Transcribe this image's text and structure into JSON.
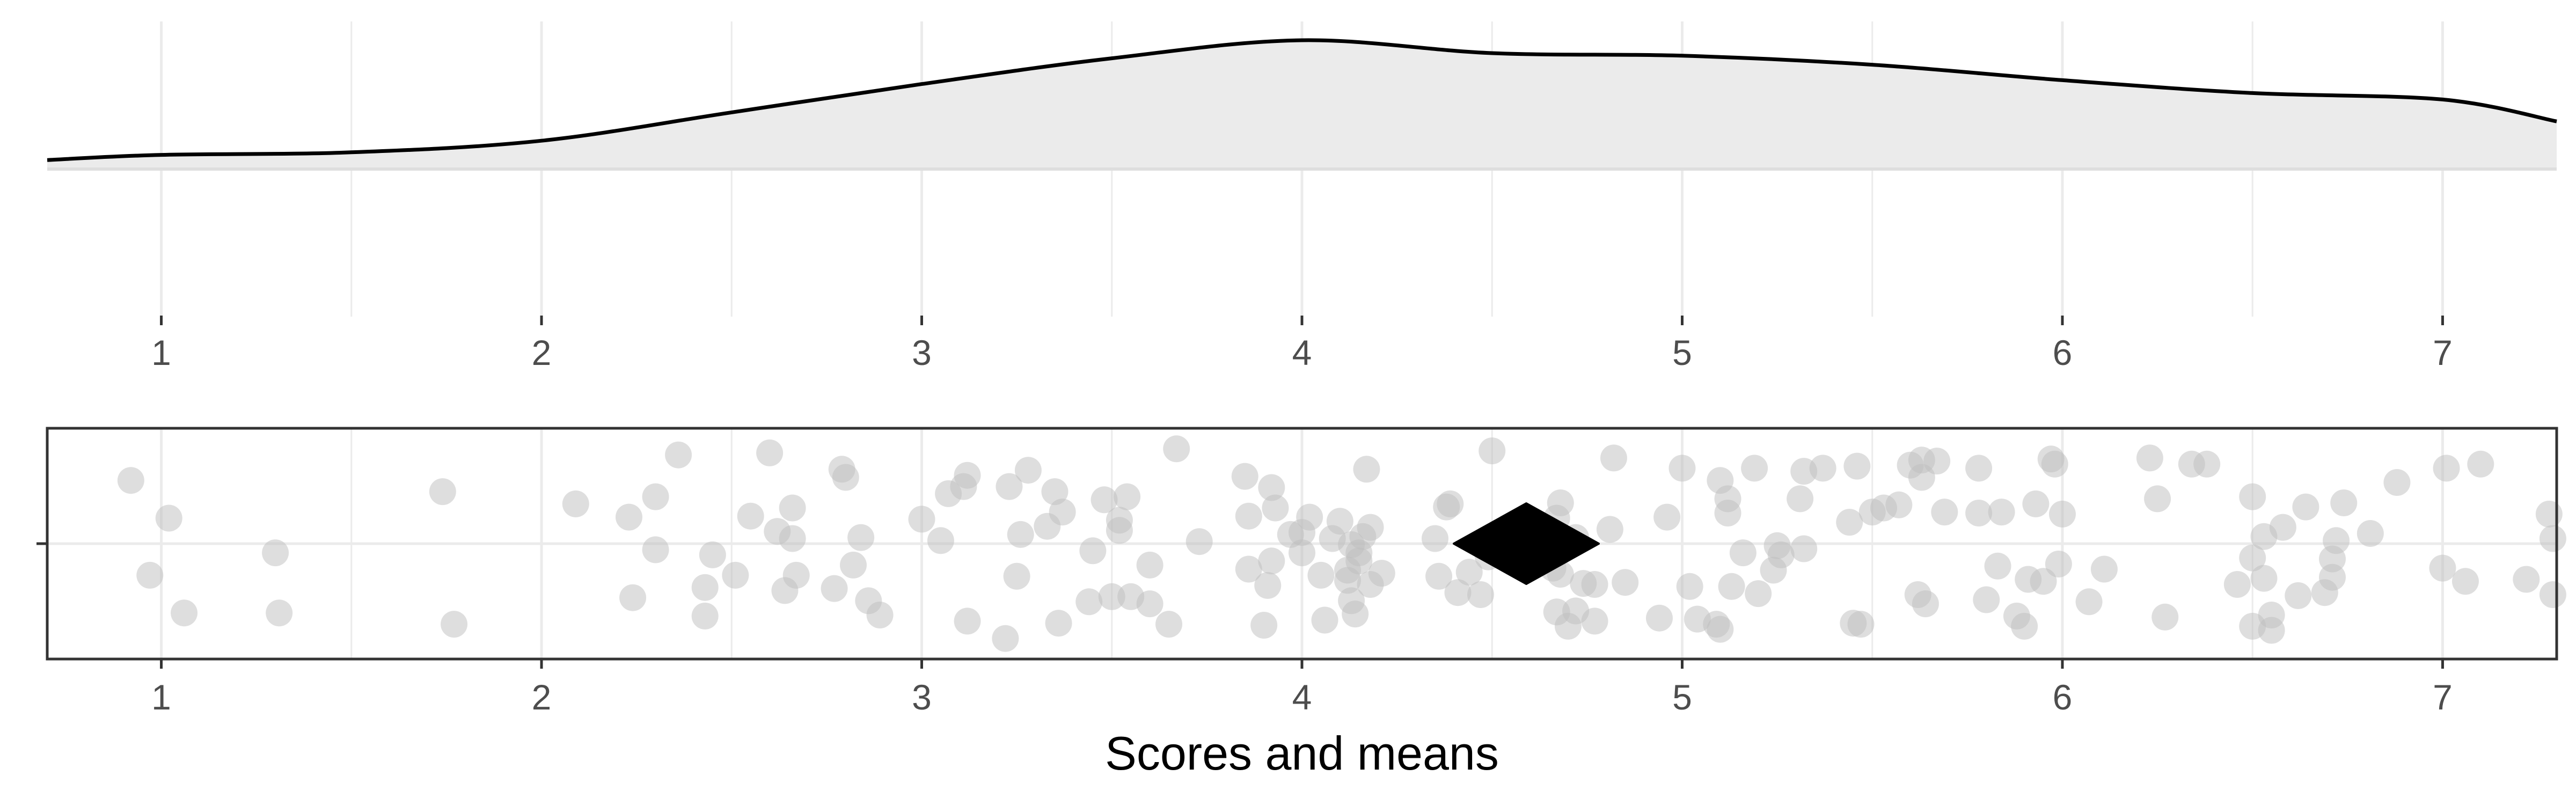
{
  "chart_data": [
    {
      "type": "area",
      "panel": "density",
      "x_range": [
        0.7,
        7.3
      ],
      "grid": true,
      "ticks": [
        "1",
        "2",
        "3",
        "4",
        "5",
        "6",
        "7"
      ],
      "tick_values": [
        1,
        2,
        3,
        4,
        5,
        6,
        7
      ],
      "density": {
        "x": [
          0.7,
          1.0,
          1.5,
          2.0,
          2.5,
          3.0,
          3.5,
          4.0,
          4.5,
          5.0,
          5.5,
          6.0,
          6.5,
          7.0,
          7.3
        ],
        "y": [
          0.07,
          0.11,
          0.13,
          0.22,
          0.44,
          0.66,
          0.86,
          1.0,
          0.9,
          0.88,
          0.81,
          0.69,
          0.59,
          0.54,
          0.37
        ]
      },
      "colors": {
        "fill": "#ebebeb",
        "line": "#000000"
      }
    },
    {
      "type": "scatter",
      "panel": "jitter",
      "x_range": [
        0.7,
        7.3
      ],
      "xlabel": "Scores and means",
      "ticks": [
        "1",
        "2",
        "3",
        "4",
        "5",
        "6",
        "7"
      ],
      "tick_values": [
        1,
        2,
        3,
        4,
        5,
        6,
        7
      ],
      "grid": true,
      "mean": 4.59,
      "points": [
        {
          "x": 0.92,
          "j": 0.62
        },
        {
          "x": 0.97,
          "j": -0.31
        },
        {
          "x": 1.02,
          "j": 0.25
        },
        {
          "x": 1.06,
          "j": -0.68
        },
        {
          "x": 1.3,
          "j": -0.09
        },
        {
          "x": 1.31,
          "j": -0.68
        },
        {
          "x": 1.74,
          "j": 0.51
        },
        {
          "x": 1.77,
          "j": -0.79
        },
        {
          "x": 2.09,
          "j": 0.39
        },
        {
          "x": 2.23,
          "j": 0.26
        },
        {
          "x": 2.24,
          "j": -0.53
        },
        {
          "x": 2.3,
          "j": 0.46
        },
        {
          "x": 2.3,
          "j": -0.06
        },
        {
          "x": 2.36,
          "j": 0.87
        },
        {
          "x": 2.43,
          "j": -0.43
        },
        {
          "x": 2.43,
          "j": -0.71
        },
        {
          "x": 2.45,
          "j": -0.11
        },
        {
          "x": 2.51,
          "j": -0.31
        },
        {
          "x": 2.55,
          "j": 0.27
        },
        {
          "x": 2.6,
          "j": 0.89
        },
        {
          "x": 2.62,
          "j": 0.12
        },
        {
          "x": 2.64,
          "j": -0.46
        },
        {
          "x": 2.66,
          "j": 0.35
        },
        {
          "x": 2.66,
          "j": 0.05
        },
        {
          "x": 2.67,
          "j": -0.31
        },
        {
          "x": 2.77,
          "j": -0.44
        },
        {
          "x": 2.79,
          "j": 0.73
        },
        {
          "x": 2.8,
          "j": 0.65
        },
        {
          "x": 2.82,
          "j": -0.21
        },
        {
          "x": 2.84,
          "j": 0.06
        },
        {
          "x": 2.86,
          "j": -0.56
        },
        {
          "x": 2.89,
          "j": -0.7
        },
        {
          "x": 3.0,
          "j": 0.24
        },
        {
          "x": 3.05,
          "j": 0.03
        },
        {
          "x": 3.07,
          "j": 0.49
        },
        {
          "x": 3.11,
          "j": 0.56
        },
        {
          "x": 3.12,
          "j": 0.67
        },
        {
          "x": 3.12,
          "j": -0.76
        },
        {
          "x": 3.22,
          "j": -0.93
        },
        {
          "x": 3.23,
          "j": 0.56
        },
        {
          "x": 3.25,
          "j": -0.32
        },
        {
          "x": 3.26,
          "j": 0.09
        },
        {
          "x": 3.28,
          "j": 0.72
        },
        {
          "x": 3.33,
          "j": 0.17
        },
        {
          "x": 3.35,
          "j": 0.51
        },
        {
          "x": 3.36,
          "j": -0.78
        },
        {
          "x": 3.37,
          "j": 0.31
        },
        {
          "x": 3.44,
          "j": -0.57
        },
        {
          "x": 3.45,
          "j": -0.07
        },
        {
          "x": 3.48,
          "j": 0.43
        },
        {
          "x": 3.5,
          "j": -0.52
        },
        {
          "x": 3.52,
          "j": 0.23
        },
        {
          "x": 3.52,
          "j": 0.13
        },
        {
          "x": 3.54,
          "j": 0.46
        },
        {
          "x": 3.55,
          "j": -0.52
        },
        {
          "x": 3.6,
          "j": -0.21
        },
        {
          "x": 3.6,
          "j": -0.59
        },
        {
          "x": 3.65,
          "j": -0.79
        },
        {
          "x": 3.67,
          "j": 0.93
        },
        {
          "x": 3.73,
          "j": 0.02
        },
        {
          "x": 3.85,
          "j": 0.66
        },
        {
          "x": 3.86,
          "j": 0.27
        },
        {
          "x": 3.86,
          "j": -0.25
        },
        {
          "x": 3.9,
          "j": -0.8
        },
        {
          "x": 3.91,
          "j": -0.41
        },
        {
          "x": 3.92,
          "j": -0.17
        },
        {
          "x": 3.92,
          "j": 0.55
        },
        {
          "x": 3.93,
          "j": 0.35
        },
        {
          "x": 3.97,
          "j": 0.09
        },
        {
          "x": 4.0,
          "j": 0.11
        },
        {
          "x": 4.0,
          "j": -0.09
        },
        {
          "x": 4.02,
          "j": 0.26
        },
        {
          "x": 4.05,
          "j": -0.31
        },
        {
          "x": 4.06,
          "j": -0.75
        },
        {
          "x": 4.08,
          "j": 0.05
        },
        {
          "x": 4.1,
          "j": 0.22
        },
        {
          "x": 4.12,
          "j": -0.36
        },
        {
          "x": 4.12,
          "j": -0.26
        },
        {
          "x": 4.13,
          "j": -0.56
        },
        {
          "x": 4.13,
          "j": -0.01
        },
        {
          "x": 4.14,
          "j": -0.69
        },
        {
          "x": 4.15,
          "j": -0.17
        },
        {
          "x": 4.15,
          "j": -0.09
        },
        {
          "x": 4.16,
          "j": 0.07
        },
        {
          "x": 4.17,
          "j": 0.73
        },
        {
          "x": 4.18,
          "j": 0.16
        },
        {
          "x": 4.18,
          "j": -0.4
        },
        {
          "x": 4.21,
          "j": -0.29
        },
        {
          "x": 4.35,
          "j": 0.05
        },
        {
          "x": 4.36,
          "j": -0.32
        },
        {
          "x": 4.38,
          "j": 0.36
        },
        {
          "x": 4.39,
          "j": 0.39
        },
        {
          "x": 4.41,
          "j": -0.48
        },
        {
          "x": 4.44,
          "j": -0.28
        },
        {
          "x": 4.47,
          "j": -0.5
        },
        {
          "x": 4.49,
          "j": -0.13
        },
        {
          "x": 4.5,
          "j": 0.91
        },
        {
          "x": 4.66,
          "j": -0.24
        },
        {
          "x": 4.67,
          "j": -0.67
        },
        {
          "x": 4.67,
          "j": 0.25
        },
        {
          "x": 4.68,
          "j": 0.4
        },
        {
          "x": 4.68,
          "j": -0.3
        },
        {
          "x": 4.7,
          "j": -0.81
        },
        {
          "x": 4.72,
          "j": -0.66
        },
        {
          "x": 4.72,
          "j": 0.06
        },
        {
          "x": 4.74,
          "j": -0.39
        },
        {
          "x": 4.77,
          "j": -0.4
        },
        {
          "x": 4.77,
          "j": -0.76
        },
        {
          "x": 4.81,
          "j": 0.14
        },
        {
          "x": 4.82,
          "j": 0.84
        },
        {
          "x": 4.85,
          "j": -0.38
        },
        {
          "x": 4.94,
          "j": -0.73
        },
        {
          "x": 4.96,
          "j": 0.26
        },
        {
          "x": 5.0,
          "j": 0.74
        },
        {
          "x": 5.02,
          "j": -0.42
        },
        {
          "x": 5.04,
          "j": -0.74
        },
        {
          "x": 5.09,
          "j": -0.79
        },
        {
          "x": 5.1,
          "j": -0.84
        },
        {
          "x": 5.1,
          "j": 0.62
        },
        {
          "x": 5.12,
          "j": 0.3
        },
        {
          "x": 5.12,
          "j": 0.44
        },
        {
          "x": 5.13,
          "j": -0.42
        },
        {
          "x": 5.16,
          "j": -0.09
        },
        {
          "x": 5.19,
          "j": 0.74
        },
        {
          "x": 5.2,
          "j": -0.49
        },
        {
          "x": 5.24,
          "j": -0.26
        },
        {
          "x": 5.25,
          "j": -0.02
        },
        {
          "x": 5.26,
          "j": -0.11
        },
        {
          "x": 5.31,
          "j": 0.44
        },
        {
          "x": 5.32,
          "j": -0.05
        },
        {
          "x": 5.32,
          "j": 0.71
        },
        {
          "x": 5.37,
          "j": 0.74
        },
        {
          "x": 5.44,
          "j": 0.21
        },
        {
          "x": 5.45,
          "j": -0.78
        },
        {
          "x": 5.46,
          "j": 0.76
        },
        {
          "x": 5.47,
          "j": -0.79
        },
        {
          "x": 5.5,
          "j": 0.31
        },
        {
          "x": 5.53,
          "j": 0.35
        },
        {
          "x": 5.57,
          "j": 0.38
        },
        {
          "x": 5.6,
          "j": 0.77
        },
        {
          "x": 5.62,
          "j": -0.5
        },
        {
          "x": 5.63,
          "j": 0.65
        },
        {
          "x": 5.63,
          "j": 0.82
        },
        {
          "x": 5.64,
          "j": -0.59
        },
        {
          "x": 5.67,
          "j": 0.81
        },
        {
          "x": 5.69,
          "j": 0.31
        },
        {
          "x": 5.78,
          "j": 0.3
        },
        {
          "x": 5.78,
          "j": 0.74
        },
        {
          "x": 5.8,
          "j": -0.55
        },
        {
          "x": 5.83,
          "j": -0.22
        },
        {
          "x": 5.84,
          "j": 0.31
        },
        {
          "x": 5.88,
          "j": -0.71
        },
        {
          "x": 5.9,
          "j": -0.81
        },
        {
          "x": 5.91,
          "j": -0.35
        },
        {
          "x": 5.93,
          "j": 0.39
        },
        {
          "x": 5.95,
          "j": -0.37
        },
        {
          "x": 5.97,
          "j": 0.83
        },
        {
          "x": 5.98,
          "j": 0.78
        },
        {
          "x": 5.99,
          "j": -0.2
        },
        {
          "x": 6.0,
          "j": 0.29
        },
        {
          "x": 6.07,
          "j": -0.57
        },
        {
          "x": 6.11,
          "j": -0.25
        },
        {
          "x": 6.23,
          "j": 0.84
        },
        {
          "x": 6.25,
          "j": 0.44
        },
        {
          "x": 6.27,
          "j": -0.72
        },
        {
          "x": 6.34,
          "j": 0.78
        },
        {
          "x": 6.38,
          "j": 0.78
        },
        {
          "x": 6.46,
          "j": -0.4
        },
        {
          "x": 6.5,
          "j": -0.14
        },
        {
          "x": 6.5,
          "j": -0.81
        },
        {
          "x": 6.5,
          "j": 0.46
        },
        {
          "x": 6.53,
          "j": 0.07
        },
        {
          "x": 6.53,
          "j": -0.34
        },
        {
          "x": 6.55,
          "j": -0.7
        },
        {
          "x": 6.55,
          "j": -0.85
        },
        {
          "x": 6.58,
          "j": 0.16
        },
        {
          "x": 6.62,
          "j": -0.51
        },
        {
          "x": 6.64,
          "j": 0.36
        },
        {
          "x": 6.69,
          "j": -0.48
        },
        {
          "x": 6.71,
          "j": -0.15
        },
        {
          "x": 6.71,
          "j": -0.33
        },
        {
          "x": 6.72,
          "j": 0.03
        },
        {
          "x": 6.74,
          "j": 0.4
        },
        {
          "x": 6.81,
          "j": 0.1
        },
        {
          "x": 6.88,
          "j": 0.6
        },
        {
          "x": 7.0,
          "j": -0.24
        },
        {
          "x": 7.01,
          "j": 0.74
        },
        {
          "x": 7.06,
          "j": -0.37
        },
        {
          "x": 7.1,
          "j": 0.78
        },
        {
          "x": 7.22,
          "j": -0.35
        },
        {
          "x": 7.28,
          "j": 0.29
        },
        {
          "x": 7.29,
          "j": 0.05
        },
        {
          "x": 7.29,
          "j": -0.5
        }
      ],
      "colors": {
        "point": "#bdbdbd",
        "mean_marker": "#000000",
        "panel_border": "#333333"
      }
    }
  ]
}
